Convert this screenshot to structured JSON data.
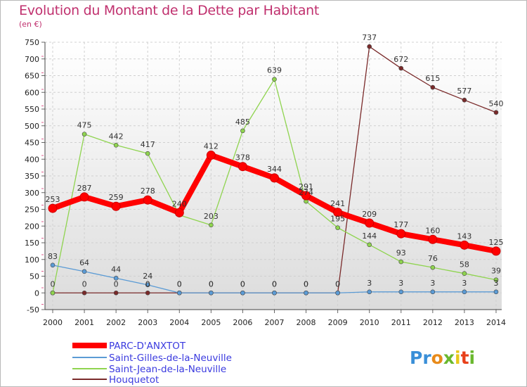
{
  "header": {
    "title": "Evolution du Montant de la Dette par Habitant",
    "unit": "(en €)"
  },
  "logo": {
    "text": "Proxiti"
  },
  "chart_data": {
    "type": "line",
    "title": "Evolution du Montant de la Dette par Habitant",
    "ylabel": "(en €)",
    "x": [
      "2000",
      "2001",
      "2002",
      "2003",
      "2004",
      "2005",
      "2006",
      "2007",
      "2008",
      "2009",
      "2010",
      "2011",
      "2012",
      "2013",
      "2014"
    ],
    "ylim": [
      -50,
      750
    ],
    "yticks": [
      -50,
      0,
      50,
      100,
      150,
      200,
      250,
      300,
      350,
      400,
      450,
      500,
      550,
      600,
      650,
      700,
      750
    ],
    "grid": true,
    "legend_position": "bottom-left",
    "series": [
      {
        "name": "PARC-D'ANXTOT",
        "color": "#ff0000",
        "values": [
          253,
          287,
          259,
          278,
          240,
          412,
          378,
          344,
          291,
          241,
          209,
          177,
          160,
          143,
          125
        ],
        "labels": [
          "253",
          "287",
          "259",
          "278",
          "240",
          "412",
          "378",
          "344",
          "291",
          "241",
          "209",
          "177",
          "160",
          "143",
          "125"
        ]
      },
      {
        "name": "Saint-Gilles-de-la-Neuville",
        "color": "#5b9bd5",
        "values": [
          83,
          64,
          44,
          24,
          0,
          0,
          0,
          0,
          0,
          0,
          3,
          3,
          3,
          3,
          3
        ],
        "labels": [
          "83",
          "64",
          "44",
          "24",
          "0",
          "0",
          "0",
          "0",
          "0",
          "0",
          "3",
          "3",
          "3",
          "3",
          "3"
        ]
      },
      {
        "name": "Saint-Jean-de-la-Neuville",
        "color": "#8fd44f",
        "values": [
          0,
          475,
          442,
          417,
          233,
          203,
          485,
          639,
          274,
          195,
          144,
          93,
          76,
          58,
          39
        ],
        "labels": [
          "",
          "475",
          "442",
          "417",
          "",
          "203",
          "485",
          "639",
          "274",
          "195",
          "144",
          "93",
          "76",
          "58",
          "39"
        ]
      },
      {
        "name": "Houquetot",
        "color": "#7a2a2a",
        "values": [
          0,
          0,
          0,
          0,
          0,
          0,
          0,
          0,
          0,
          0,
          737,
          672,
          615,
          577,
          540
        ],
        "labels": [
          "0",
          "0",
          "0",
          "0",
          "0",
          "0",
          "0",
          "0",
          "0",
          "0",
          "737",
          "672",
          "615",
          "577",
          "540"
        ]
      }
    ]
  }
}
